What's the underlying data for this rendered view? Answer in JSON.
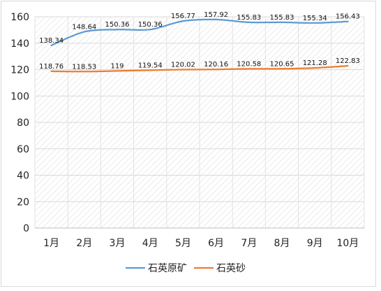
{
  "chart_data": {
    "type": "line",
    "title": "",
    "xlabel": "",
    "ylabel": "",
    "categories": [
      "1月",
      "2月",
      "3月",
      "4月",
      "5月",
      "6月",
      "7月",
      "8月",
      "9月",
      "10月"
    ],
    "ylim": [
      0,
      160
    ],
    "yticks": [
      0,
      20,
      40,
      60,
      80,
      100,
      120,
      140,
      160
    ],
    "grid": true,
    "legend_position": "bottom",
    "series": [
      {
        "name": "石英原矿",
        "color": "#5b9bd5",
        "values": [
          138.34,
          148.64,
          150.36,
          150.36,
          156.77,
          157.92,
          155.83,
          155.83,
          155.34,
          156.43
        ],
        "labels": [
          "138.34",
          "148.64",
          "150.36",
          "150.36",
          "156.77",
          "157.92",
          "155.83",
          "155.83",
          "155.34",
          "156.43"
        ]
      },
      {
        "name": "石英砂",
        "color": "#ed7d31",
        "values": [
          118.76,
          118.53,
          119,
          119.54,
          120.02,
          120.16,
          120.58,
          120.65,
          121.28,
          122.83
        ],
        "labels": [
          "118.76",
          "118.53",
          "119",
          "119.54",
          "120.02",
          "120.16",
          "120.58",
          "120.65",
          "121.28",
          "122.83"
        ]
      }
    ]
  }
}
